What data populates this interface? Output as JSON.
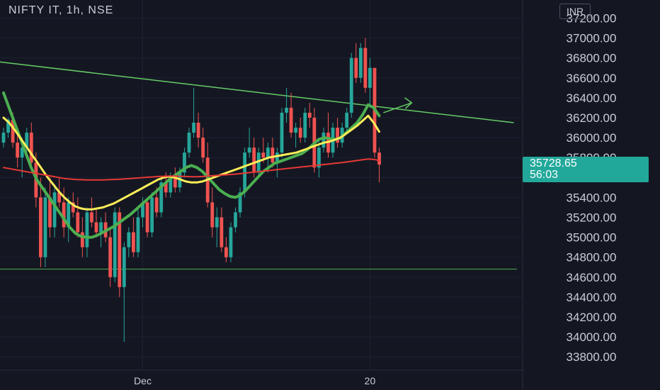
{
  "header": {
    "title": "NIFTY IT, 1h, NSE",
    "currency": "INR"
  },
  "price_badge": {
    "price": "35728.65",
    "countdown": "56:03"
  },
  "colors": {
    "background": "#141722",
    "up": "#26a69a",
    "down": "#ef5350",
    "ema_green": "#4caf50",
    "ema_yellow": "#ffee58",
    "ema_red": "#e53935",
    "trendline": "#66cc66",
    "support": "#4caf50"
  },
  "chart_data": {
    "type": "candlestick",
    "symbol": "NIFTY IT",
    "interval": "1h",
    "exchange": "NSE",
    "ylim": [
      33700,
      37300
    ],
    "y_ticks": [
      37200,
      37000,
      36800,
      36600,
      36400,
      36200,
      36000,
      35800,
      35600,
      35400,
      35200,
      35000,
      34800,
      34600,
      34400,
      34200,
      34000,
      33800
    ],
    "x_tick_labels": [
      "Dec",
      "20"
    ],
    "last_price": 35728.65,
    "trendline": {
      "from": [
        0,
        36760
      ],
      "to": [
        110,
        36150
      ],
      "arrow_at": [
        88,
        36350
      ],
      "color": "#66cc66"
    },
    "support_level": 34680,
    "candles": [
      [
        35950,
        36100,
        35900,
        36050
      ],
      [
        36050,
        36200,
        36000,
        36180
      ],
      [
        36180,
        36250,
        35900,
        35950
      ],
      [
        35950,
        36100,
        35700,
        35800
      ],
      [
        35800,
        36000,
        35600,
        35900
      ],
      [
        35900,
        36100,
        35800,
        36050
      ],
      [
        36050,
        36150,
        35700,
        35750
      ],
      [
        35750,
        35850,
        35300,
        35400
      ],
      [
        35400,
        35600,
        34700,
        34800
      ],
      [
        34800,
        35500,
        34700,
        35400
      ],
      [
        35400,
        35600,
        35000,
        35100
      ],
      [
        35100,
        35500,
        35000,
        35450
      ],
      [
        35450,
        35600,
        35300,
        35350
      ],
      [
        35350,
        35500,
        35000,
        35100
      ],
      [
        35100,
        35400,
        34950,
        35350
      ],
      [
        35350,
        35450,
        35200,
        35250
      ],
      [
        35250,
        35400,
        35000,
        35050
      ],
      [
        35050,
        35200,
        34800,
        34900
      ],
      [
        34900,
        35300,
        34800,
        35250
      ],
      [
        35250,
        35400,
        35100,
        35150
      ],
      [
        35150,
        35300,
        35000,
        35050
      ],
      [
        35050,
        35200,
        34900,
        35150
      ],
      [
        35150,
        35250,
        34950,
        35000
      ],
      [
        35000,
        35100,
        34500,
        34600
      ],
      [
        34600,
        35300,
        34550,
        35250
      ],
      [
        35250,
        35300,
        34400,
        34500
      ],
      [
        34500,
        34950,
        33950,
        34900
      ],
      [
        34900,
        35100,
        34800,
        35050
      ],
      [
        35050,
        35200,
        34800,
        34850
      ],
      [
        34850,
        35300,
        34800,
        35200
      ],
      [
        35200,
        35400,
        35100,
        35350
      ],
      [
        35350,
        35400,
        35000,
        35050
      ],
      [
        35050,
        35450,
        35000,
        35400
      ],
      [
        35400,
        35500,
        35200,
        35250
      ],
      [
        35250,
        35600,
        35200,
        35550
      ],
      [
        35550,
        35650,
        35400,
        35450
      ],
      [
        35450,
        35650,
        35400,
        35600
      ],
      [
        35600,
        35700,
        35450,
        35500
      ],
      [
        35500,
        35700,
        35450,
        35650
      ],
      [
        35650,
        35900,
        35600,
        35850
      ],
      [
        35850,
        36100,
        35800,
        36050
      ],
      [
        36050,
        36500,
        36000,
        36150
      ],
      [
        36150,
        36250,
        35900,
        36000
      ],
      [
        36000,
        36100,
        35750,
        35800
      ],
      [
        35800,
        35950,
        35300,
        35350
      ],
      [
        35350,
        35500,
        35000,
        35100
      ],
      [
        35100,
        35300,
        34900,
        35200
      ],
      [
        35200,
        35300,
        34850,
        34900
      ],
      [
        34900,
        35000,
        34750,
        34800
      ],
      [
        34800,
        35150,
        34750,
        35100
      ],
      [
        35100,
        35300,
        35050,
        35250
      ],
      [
        35250,
        35500,
        35200,
        35450
      ],
      [
        35450,
        35900,
        35400,
        35850
      ],
      [
        35850,
        36100,
        35800,
        35900
      ],
      [
        35900,
        36000,
        35600,
        35650
      ],
      [
        35650,
        35900,
        35600,
        35850
      ],
      [
        35850,
        36000,
        35750,
        35800
      ],
      [
        35800,
        35950,
        35650,
        35900
      ],
      [
        35900,
        36000,
        35700,
        35750
      ],
      [
        35750,
        35900,
        35600,
        35850
      ],
      [
        35850,
        36300,
        35800,
        36250
      ],
      [
        36250,
        36500,
        36150,
        36300
      ],
      [
        36300,
        36450,
        36000,
        36050
      ],
      [
        36050,
        36150,
        35900,
        36100
      ],
      [
        36100,
        36200,
        35950,
        36000
      ],
      [
        36000,
        36300,
        35950,
        36250
      ],
      [
        36250,
        36350,
        36100,
        36200
      ],
      [
        36200,
        36300,
        35650,
        35700
      ],
      [
        35700,
        36000,
        35600,
        35900
      ],
      [
        35900,
        36100,
        35850,
        36050
      ],
      [
        36050,
        36250,
        35800,
        35850
      ],
      [
        35850,
        36150,
        35800,
        36100
      ],
      [
        36100,
        36200,
        35900,
        35950
      ],
      [
        35950,
        36150,
        35900,
        36100
      ],
      [
        36100,
        36300,
        36050,
        36250
      ],
      [
        36250,
        36850,
        36200,
        36800
      ],
      [
        36800,
        36950,
        36550,
        36600
      ],
      [
        36600,
        36950,
        36550,
        36900
      ],
      [
        36900,
        37000,
        36450,
        36500
      ],
      [
        36500,
        36800,
        36300,
        36700
      ],
      [
        36700,
        36700,
        35800,
        35850
      ],
      [
        35850,
        35900,
        35550,
        35728.65
      ]
    ],
    "series": [
      {
        "name": "",
        "color": "#4caf50",
        "width": 4,
        "values": [
          36450,
          36300,
          36150,
          36000,
          35850,
          35700,
          35580,
          35500,
          35420,
          35340,
          35260,
          35180,
          35100,
          35040,
          35010,
          35000,
          35000,
          35020,
          35050,
          35080,
          35110,
          35150,
          35190,
          35230,
          35280,
          35330,
          35380,
          35430,
          35480,
          35530,
          35580,
          35620,
          35660,
          35700,
          35720,
          35700,
          35660,
          35600,
          35540,
          35480,
          35440,
          35410,
          35400,
          35430,
          35480,
          35540,
          35600,
          35660,
          35700,
          35740,
          35760,
          35780,
          35800,
          35820,
          35840,
          35880,
          35930,
          35980,
          36000,
          35990,
          35980,
          36000,
          36050,
          36100,
          36150,
          36230,
          36330,
          36300,
          36220
        ]
      },
      {
        "name": "",
        "color": "#ffee58",
        "width": 3,
        "values": [
          36200,
          36150,
          36080,
          36000,
          35920,
          35840,
          35760,
          35680,
          35600,
          35530,
          35460,
          35400,
          35350,
          35310,
          35290,
          35280,
          35280,
          35290,
          35300,
          35320,
          35340,
          35370,
          35400,
          35430,
          35460,
          35490,
          35520,
          35550,
          35580,
          35600,
          35610,
          35600,
          35580,
          35560,
          35550,
          35550,
          35560,
          35580,
          35600,
          35620,
          35640,
          35660,
          35680,
          35700,
          35720,
          35740,
          35760,
          35780,
          35800,
          35810,
          35820,
          35830,
          35840,
          35850,
          35870,
          35890,
          35910,
          35930,
          35950,
          35960,
          35980,
          36000,
          36040,
          36080,
          36120,
          36170,
          36220,
          36150,
          36060
        ]
      },
      {
        "name": "",
        "color": "#e53935",
        "width": 2,
        "values": [
          35700,
          35690,
          35680,
          35670,
          35660,
          35650,
          35640,
          35630,
          35620,
          35610,
          35600,
          35590,
          35585,
          35580,
          35578,
          35576,
          35575,
          35575,
          35576,
          35578,
          35580,
          35583,
          35586,
          35590,
          35594,
          35598,
          35602,
          35606,
          35610,
          35612,
          35614,
          35614,
          35612,
          35610,
          35608,
          35608,
          35610,
          35614,
          35618,
          35622,
          35626,
          35630,
          35634,
          35640,
          35646,
          35652,
          35658,
          35664,
          35670,
          35676,
          35682,
          35688,
          35694,
          35700,
          35706,
          35712,
          35718,
          35724,
          35730,
          35736,
          35742,
          35748,
          35755,
          35762,
          35770,
          35778,
          35786,
          35782,
          35770
        ]
      }
    ]
  }
}
